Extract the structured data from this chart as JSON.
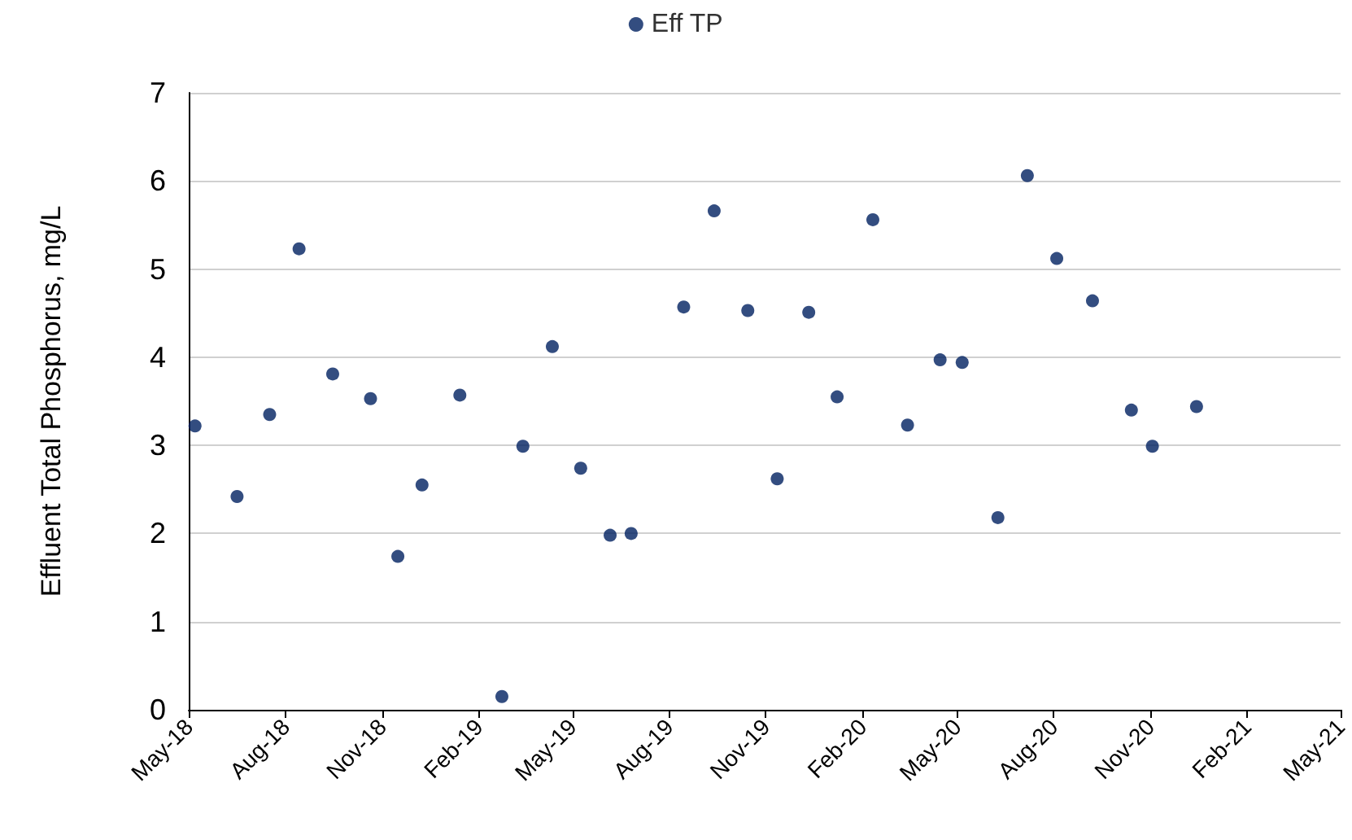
{
  "chart_data": {
    "type": "scatter",
    "ylabel": "Effluent Total Phosphorus, mg/L",
    "x": [
      "2018-05-07",
      "2018-06-16",
      "2018-07-17",
      "2018-08-14",
      "2018-09-15",
      "2018-10-21",
      "2018-11-16",
      "2018-12-09",
      "2019-01-14",
      "2019-02-23",
      "2019-03-15",
      "2019-04-12",
      "2019-05-09",
      "2019-06-06",
      "2019-06-26",
      "2019-08-15",
      "2019-09-13",
      "2019-10-15",
      "2019-11-12",
      "2019-12-12",
      "2020-01-08",
      "2020-02-11",
      "2020-03-15",
      "2020-04-15",
      "2020-05-06",
      "2020-06-09",
      "2020-07-07",
      "2020-08-04",
      "2020-09-07",
      "2020-10-14",
      "2020-11-03",
      "2020-12-15"
    ],
    "series": [
      {
        "name": "Eff TP",
        "color": "#002060",
        "values": [
          3.22,
          2.42,
          3.35,
          5.23,
          3.81,
          3.53,
          1.74,
          2.55,
          3.57,
          0.15,
          2.99,
          4.12,
          2.74,
          1.98,
          2.0,
          4.57,
          5.66,
          4.53,
          2.62,
          4.51,
          3.55,
          5.56,
          3.23,
          3.97,
          3.94,
          2.18,
          6.06,
          5.12,
          4.64,
          3.4,
          2.99,
          3.44
        ]
      }
    ],
    "xlim": [
      "2018-05",
      "2021-05"
    ],
    "xticks": [
      {
        "value": "2018-05",
        "label": "May-18"
      },
      {
        "value": "2018-08",
        "label": "Aug-18"
      },
      {
        "value": "2018-11",
        "label": "Nov-18"
      },
      {
        "value": "2019-02",
        "label": "Feb-19"
      },
      {
        "value": "2019-05",
        "label": "May-19"
      },
      {
        "value": "2019-08",
        "label": "Aug-19"
      },
      {
        "value": "2019-11",
        "label": "Nov-19"
      },
      {
        "value": "2020-02",
        "label": "Feb-20"
      },
      {
        "value": "2020-05",
        "label": "May-20"
      },
      {
        "value": "2020-08",
        "label": "Aug-20"
      },
      {
        "value": "2020-11",
        "label": "Nov-20"
      },
      {
        "value": "2021-02",
        "label": "Feb-21"
      },
      {
        "value": "2021-05",
        "label": "May-21"
      }
    ],
    "ylim": [
      0,
      7
    ],
    "yticks": [
      0,
      1,
      2,
      3,
      4,
      5,
      6,
      7
    ],
    "grid": "y",
    "legend": "top",
    "marker": "circle"
  }
}
